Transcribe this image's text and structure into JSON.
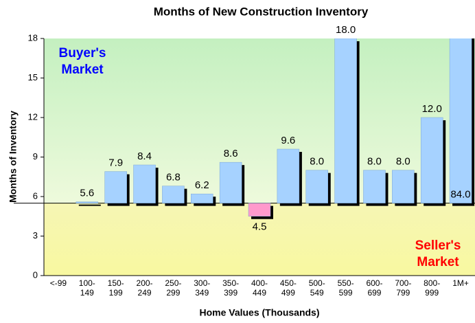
{
  "chart_data": {
    "type": "bar",
    "title": "Months of New Construction Inventory",
    "y_label": "Months of Inventory",
    "x_label": "Home Values (Thousands)",
    "categories": [
      "<-99",
      "100-\n149",
      "150-\n199",
      "200-\n249",
      "250-\n299",
      "300-\n349",
      "350-\n399",
      "400-\n449",
      "450-\n499",
      "500-\n549",
      "550-\n599",
      "600-\n699",
      "700-\n799",
      "800-\n999",
      "1M+"
    ],
    "values": [
      null,
      5.6,
      7.9,
      8.4,
      6.8,
      6.2,
      8.6,
      4.5,
      9.6,
      8.0,
      18.0,
      8.0,
      8.0,
      12.0,
      84.0
    ],
    "value_labels": [
      null,
      "5.6",
      "7.9",
      "8.4",
      "6.8",
      "6.2",
      "8.6",
      "4.5",
      "9.6",
      "8.0",
      "18.0",
      "8.0",
      "8.0",
      "12.0",
      "84.0"
    ],
    "baseline": 5.5,
    "color": "#a6d2ff",
    "below_color": "#ff99cc",
    "ylim": [
      0,
      18
    ],
    "yticks": [
      0,
      3,
      6,
      9,
      12,
      15,
      18
    ],
    "grid": false,
    "annotations": [
      {
        "text": "Buyer's\nMarket",
        "color": "#0000ff"
      },
      {
        "text": "Seller's\nMarket",
        "color": "#ff0000"
      }
    ]
  }
}
